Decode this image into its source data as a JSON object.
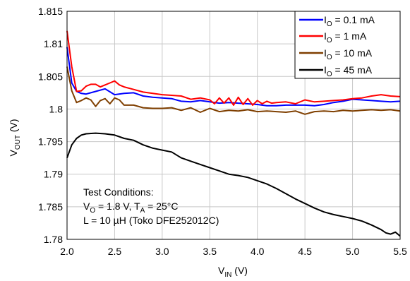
{
  "chart_data": {
    "type": "line",
    "xlabel": "V",
    "xlabel_sub": "IN",
    "xlabel_unit": " (V)",
    "ylabel": "V",
    "ylabel_sub": "OUT",
    "ylabel_unit": " (V)",
    "xlim": [
      2.0,
      5.5
    ],
    "ylim": [
      1.78,
      1.815
    ],
    "xticks": [
      "2.0",
      "2.5",
      "3.0",
      "3.5",
      "4.0",
      "4.5",
      "5.0",
      "5.5"
    ],
    "yticks": [
      "1.815",
      "1.81",
      "1.805",
      "1.8",
      "1.795",
      "1.79",
      "1.785",
      "1.78"
    ],
    "grid": true,
    "legend_position": "top-right",
    "annotation": {
      "line1": "Test Conditions:",
      "line2_a": "V",
      "line2_a_sub": "O",
      "line2_b": " = 1.8 V, T",
      "line2_b_sub": "A",
      "line2_c": " = 25°C",
      "line3": "L = 10 µH (Toko DFE252012C)"
    },
    "series": [
      {
        "label_main": "I",
        "label_sub": "O",
        "label_rest": " = 0.1 mA",
        "color": "#0000ff",
        "x": [
          2.0,
          2.05,
          2.1,
          2.15,
          2.2,
          2.3,
          2.4,
          2.5,
          2.6,
          2.7,
          2.8,
          2.9,
          3.0,
          3.1,
          3.2,
          3.3,
          3.4,
          3.5,
          3.6,
          3.7,
          3.8,
          3.9,
          4.0,
          4.1,
          4.2,
          4.3,
          4.4,
          4.5,
          4.6,
          4.7,
          4.8,
          4.9,
          5.0,
          5.1,
          5.2,
          5.3,
          5.4,
          5.5
        ],
        "y": [
          1.8095,
          1.804,
          1.8027,
          1.8024,
          1.8023,
          1.8027,
          1.8031,
          1.8022,
          1.8024,
          1.8025,
          1.802,
          1.8018,
          1.8017,
          1.8016,
          1.8012,
          1.8011,
          1.8013,
          1.8011,
          1.8009,
          1.801,
          1.8009,
          1.8008,
          1.8007,
          1.8005,
          1.8005,
          1.8006,
          1.8006,
          1.8006,
          1.8005,
          1.8007,
          1.801,
          1.8012,
          1.8015,
          1.8014,
          1.8013,
          1.8012,
          1.8011,
          1.8012
        ]
      },
      {
        "label_main": "I",
        "label_sub": "O",
        "label_rest": " = 1 mA",
        "color": "#ff0000",
        "x": [
          2.0,
          2.05,
          2.1,
          2.15,
          2.2,
          2.25,
          2.3,
          2.35,
          2.4,
          2.45,
          2.5,
          2.55,
          2.6,
          2.7,
          2.8,
          2.9,
          3.0,
          3.1,
          3.2,
          3.3,
          3.4,
          3.5,
          3.55,
          3.6,
          3.65,
          3.7,
          3.75,
          3.8,
          3.85,
          3.9,
          3.95,
          4.0,
          4.05,
          4.1,
          4.15,
          4.2,
          4.3,
          4.4,
          4.5,
          4.6,
          4.7,
          4.8,
          4.9,
          5.0,
          5.1,
          5.2,
          5.3,
          5.4,
          5.5
        ],
        "y": [
          1.812,
          1.8065,
          1.8027,
          1.8028,
          1.8035,
          1.8038,
          1.8038,
          1.8034,
          1.8037,
          1.804,
          1.8043,
          1.8037,
          1.8034,
          1.803,
          1.8026,
          1.8024,
          1.8022,
          1.8021,
          1.802,
          1.8015,
          1.8017,
          1.8014,
          1.8008,
          1.8017,
          1.8009,
          1.8017,
          1.8006,
          1.8018,
          1.8007,
          1.8016,
          1.8006,
          1.8013,
          1.8008,
          1.8012,
          1.8009,
          1.801,
          1.8011,
          1.8008,
          1.8014,
          1.8011,
          1.8012,
          1.8013,
          1.8014,
          1.8016,
          1.8017,
          1.802,
          1.8022,
          1.802,
          1.8019
        ]
      },
      {
        "label_main": "I",
        "label_sub": "O",
        "label_rest": " = 10 mA",
        "color": "#7f3f00",
        "x": [
          2.0,
          2.05,
          2.1,
          2.15,
          2.2,
          2.25,
          2.3,
          2.35,
          2.4,
          2.45,
          2.5,
          2.55,
          2.6,
          2.7,
          2.8,
          2.9,
          3.0,
          3.1,
          3.2,
          3.3,
          3.4,
          3.5,
          3.6,
          3.7,
          3.8,
          3.9,
          4.0,
          4.1,
          4.2,
          4.3,
          4.4,
          4.5,
          4.6,
          4.7,
          4.8,
          4.9,
          5.0,
          5.1,
          5.2,
          5.3,
          5.4,
          5.5
        ],
        "y": [
          1.8065,
          1.8028,
          1.801,
          1.8013,
          1.8017,
          1.8014,
          1.8004,
          1.8013,
          1.8016,
          1.8008,
          1.8017,
          1.8014,
          1.8006,
          1.8006,
          1.8002,
          1.8001,
          1.8001,
          1.8002,
          1.7998,
          1.8002,
          1.7995,
          1.8001,
          1.7996,
          1.7998,
          1.7997,
          1.7999,
          1.7996,
          1.7997,
          1.7996,
          1.7995,
          1.7997,
          1.7992,
          1.7996,
          1.7997,
          1.7996,
          1.7998,
          1.7997,
          1.7998,
          1.7999,
          1.7998,
          1.7999,
          1.7997
        ]
      },
      {
        "label_main": "I",
        "label_sub": "O",
        "label_rest": " = 45 mA",
        "color": "#000000",
        "x": [
          2.0,
          2.05,
          2.1,
          2.15,
          2.2,
          2.3,
          2.4,
          2.5,
          2.6,
          2.7,
          2.8,
          2.9,
          3.0,
          3.1,
          3.2,
          3.3,
          3.4,
          3.5,
          3.6,
          3.7,
          3.8,
          3.9,
          4.0,
          4.1,
          4.2,
          4.3,
          4.4,
          4.5,
          4.6,
          4.7,
          4.8,
          4.9,
          5.0,
          5.1,
          5.2,
          5.3,
          5.35,
          5.4,
          5.45,
          5.5
        ],
        "y": [
          1.7925,
          1.7945,
          1.7955,
          1.796,
          1.7962,
          1.7963,
          1.7962,
          1.796,
          1.7955,
          1.7952,
          1.7945,
          1.794,
          1.7937,
          1.7934,
          1.7925,
          1.792,
          1.7915,
          1.791,
          1.7905,
          1.79,
          1.7898,
          1.7895,
          1.789,
          1.7885,
          1.7878,
          1.787,
          1.7862,
          1.7855,
          1.7848,
          1.7842,
          1.7838,
          1.7835,
          1.7832,
          1.7828,
          1.7822,
          1.7815,
          1.781,
          1.7808,
          1.7811,
          1.7805
        ]
      }
    ]
  }
}
